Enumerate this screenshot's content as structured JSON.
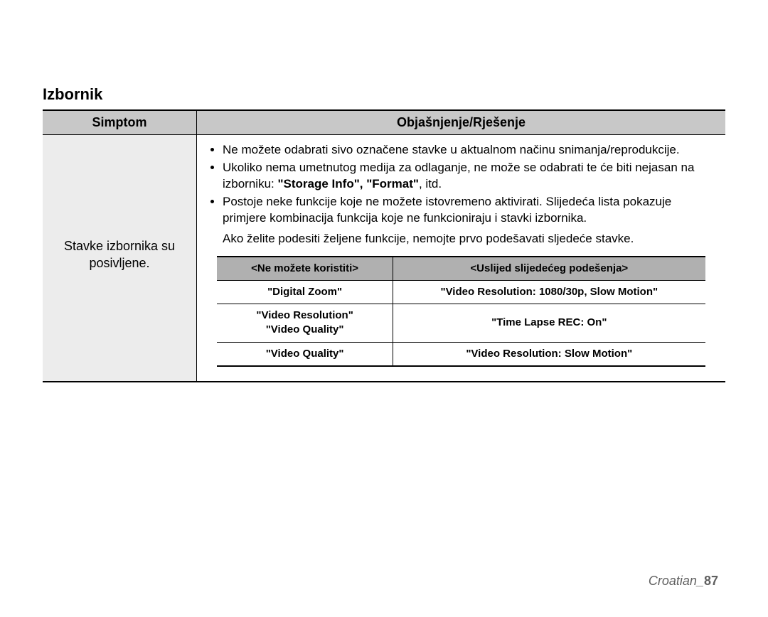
{
  "section_title": "Izbornik",
  "outer_table": {
    "headers": {
      "left": "Simptom",
      "right": "Objašnjenje/Rješenje"
    },
    "row": {
      "symptom": "Stavke izbornika su posivljene.",
      "bullets": [
        "Ne možete odabrati sivo označene stavke u aktualnom načinu snimanja/reprodukcije.",
        "Ukoliko nema umetnutog medija za odlaganje, ne može se odabrati te će biti nejasan na izborniku: ",
        "Postoje neke funkcije koje ne možete istovremeno aktivirati. Slijedeća lista pokazuje primjere kombinacija funkcija koje ne funkcioniraju i stavki izbornika."
      ],
      "bullet2_bold": "\"Storage Info\", \"Format\"",
      "bullet2_tail": ", itd.",
      "after_list": "Ako želite podesiti željene funkcije, nemojte prvo podešavati sljedeće stavke.",
      "inner_table": {
        "headers": {
          "left": "<Ne možete koristiti>",
          "right": "<Uslijed slijedećeg podešenja>"
        },
        "rows": [
          {
            "left": [
              "\"Digital Zoom\""
            ],
            "right": "\"Video Resolution: 1080/30p, Slow Motion\""
          },
          {
            "left": [
              "\"Video Resolution\"",
              "\"Video Quality\""
            ],
            "right": "\"Time Lapse REC: On\""
          },
          {
            "left": [
              "\"Video Quality\""
            ],
            "right": "\"Video Resolution: Slow Motion\""
          }
        ]
      }
    }
  },
  "footer": {
    "lang": "Croatian",
    "sep": "_",
    "page": "87"
  },
  "colors": {
    "page_bg": "#ffffff",
    "header_row_bg": "#c8c8c8",
    "symptom_cell_bg": "#ececec",
    "inner_header_bg": "#b0b0b0",
    "footer_text": "#606060",
    "text": "#000000"
  },
  "typography": {
    "base_font": "Arial",
    "section_title_pt": 17,
    "body_pt": 13,
    "inner_table_pt": 11
  }
}
